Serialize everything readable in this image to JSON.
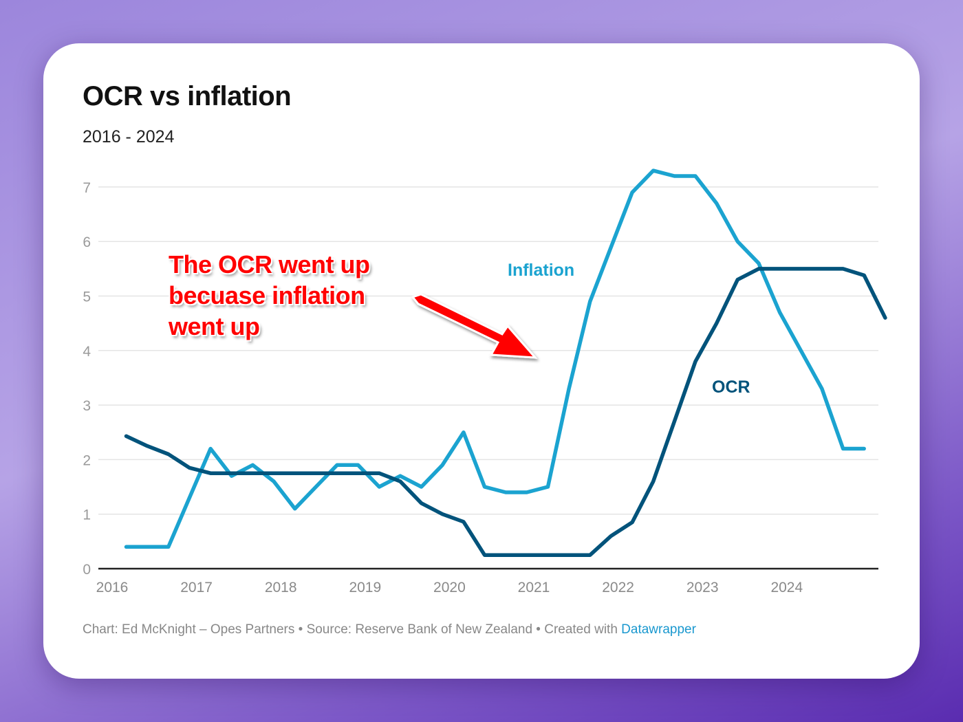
{
  "chart_data": {
    "type": "line",
    "title": "OCR vs inflation",
    "subtitle": "2016 - 2024",
    "xlabel": "",
    "ylabel": "",
    "ylim": [
      0,
      7
    ],
    "xlim": [
      2016,
      2025.2
    ],
    "yticks": [
      "0",
      "1",
      "2",
      "3",
      "4",
      "5",
      "6",
      "7"
    ],
    "xticks": [
      "2016",
      "2017",
      "2018",
      "2019",
      "2020",
      "2021",
      "2022",
      "2023",
      "2024"
    ],
    "grid": true,
    "x_start": 2016.167,
    "x_step": 0.25,
    "series": [
      {
        "name": "Inflation",
        "color": "#1ba3d0",
        "values": [
          0.4,
          0.4,
          0.4,
          1.3,
          2.2,
          1.7,
          1.9,
          1.6,
          1.1,
          1.5,
          1.9,
          1.9,
          1.5,
          1.7,
          1.5,
          1.9,
          2.5,
          1.5,
          1.4,
          1.4,
          1.5,
          3.3,
          4.9,
          5.9,
          6.9,
          7.3,
          7.2,
          7.2,
          6.7,
          6.0,
          5.6,
          4.7,
          4.0,
          3.3,
          2.2,
          2.2
        ]
      },
      {
        "name": "OCR",
        "color": "#02537b",
        "values": [
          2.43,
          2.25,
          2.1,
          1.85,
          1.75,
          1.75,
          1.75,
          1.75,
          1.75,
          1.75,
          1.75,
          1.75,
          1.75,
          1.6,
          1.2,
          1.0,
          0.86,
          0.25,
          0.25,
          0.25,
          0.25,
          0.25,
          0.25,
          0.6,
          0.85,
          1.6,
          2.7,
          3.8,
          4.5,
          5.3,
          5.5,
          5.5,
          5.5,
          5.5,
          5.5,
          5.38,
          4.6
        ]
      }
    ],
    "annotation": "The OCR went up becuase inflation went up",
    "annotation_lines": [
      "The OCR went up",
      "becuase inflation",
      "went up"
    ]
  },
  "footer": {
    "text": "Chart: Ed McKnight – Opes Partners • Source: Reserve Bank of New Zealand • Created with ",
    "link": "Datawrapper"
  },
  "colors": {
    "annotation": "#ff0000",
    "link": "#1a98cf"
  }
}
